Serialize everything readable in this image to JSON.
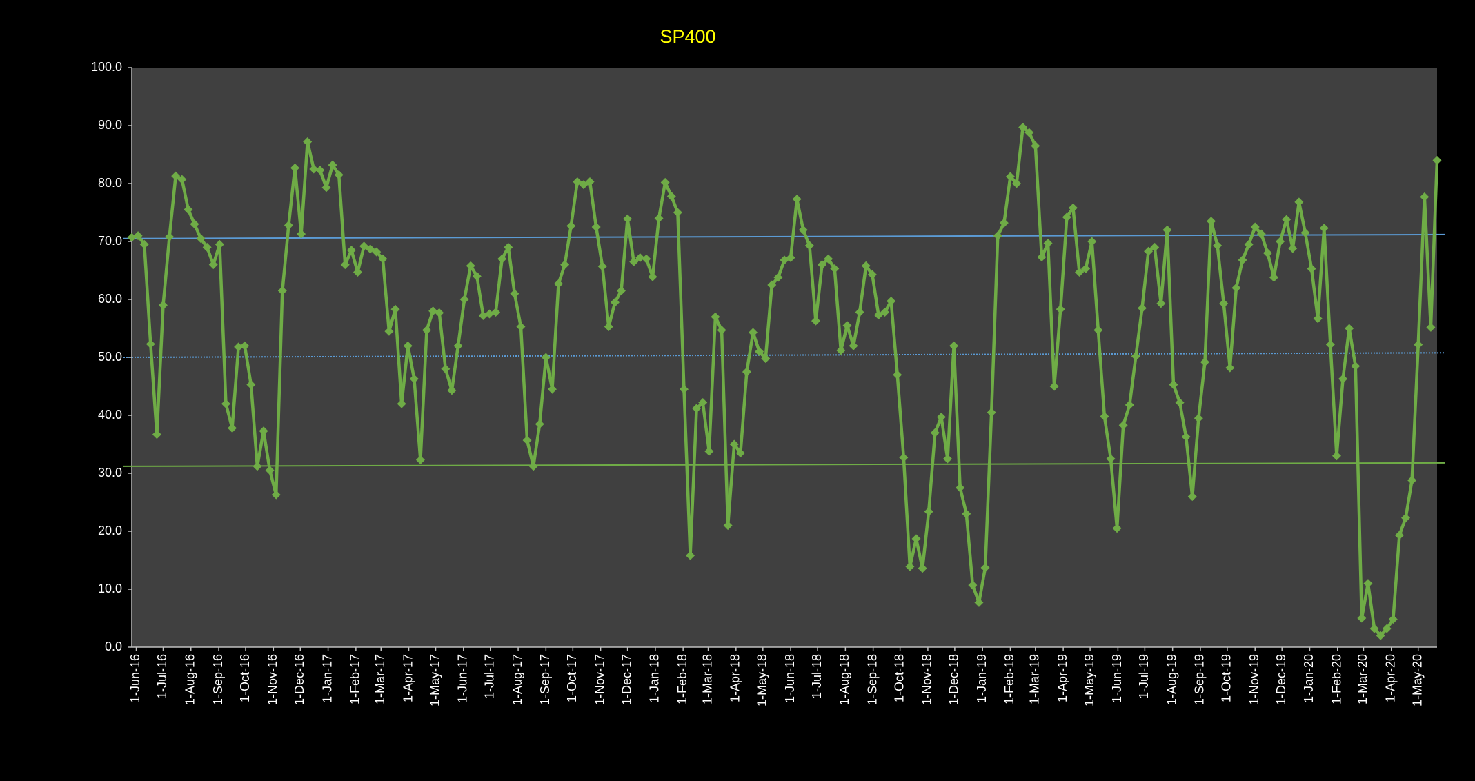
{
  "chart_data": {
    "type": "line",
    "title": "SP400",
    "title_color": "#ffff00",
    "background": "#000000",
    "plot_background": "#404040",
    "text_color": "#ffffff",
    "x": [
      "2016-05-27",
      "2016-06-03",
      "2016-06-10",
      "2016-06-17",
      "2016-06-24",
      "2016-07-01",
      "2016-07-08",
      "2016-07-15",
      "2016-07-22",
      "2016-07-29",
      "2016-08-05",
      "2016-08-12",
      "2016-08-19",
      "2016-08-26",
      "2016-09-02",
      "2016-09-09",
      "2016-09-16",
      "2016-09-23",
      "2016-09-30",
      "2016-10-07",
      "2016-10-14",
      "2016-10-21",
      "2016-10-28",
      "2016-11-04",
      "2016-11-11",
      "2016-11-18",
      "2016-11-25",
      "2016-12-02",
      "2016-12-09",
      "2016-12-16",
      "2016-12-23",
      "2016-12-30",
      "2017-01-06",
      "2017-01-13",
      "2017-01-20",
      "2017-01-27",
      "2017-02-03",
      "2017-02-10",
      "2017-02-17",
      "2017-02-24",
      "2017-03-03",
      "2017-03-10",
      "2017-03-17",
      "2017-03-24",
      "2017-03-31",
      "2017-04-07",
      "2017-04-14",
      "2017-04-21",
      "2017-04-28",
      "2017-05-05",
      "2017-05-12",
      "2017-05-19",
      "2017-05-26",
      "2017-06-02",
      "2017-06-09",
      "2017-06-16",
      "2017-06-23",
      "2017-06-30",
      "2017-07-07",
      "2017-07-14",
      "2017-07-21",
      "2017-07-28",
      "2017-08-04",
      "2017-08-11",
      "2017-08-18",
      "2017-08-25",
      "2017-09-01",
      "2017-09-08",
      "2017-09-15",
      "2017-09-22",
      "2017-09-29",
      "2017-10-06",
      "2017-10-13",
      "2017-10-20",
      "2017-10-27",
      "2017-11-03",
      "2017-11-10",
      "2017-11-17",
      "2017-11-24",
      "2017-12-01",
      "2017-12-08",
      "2017-12-15",
      "2017-12-22",
      "2017-12-29",
      "2018-01-05",
      "2018-01-12",
      "2018-01-19",
      "2018-01-26",
      "2018-02-02",
      "2018-02-09",
      "2018-02-16",
      "2018-02-23",
      "2018-03-02",
      "2018-03-09",
      "2018-03-16",
      "2018-03-23",
      "2018-03-30",
      "2018-04-06",
      "2018-04-13",
      "2018-04-20",
      "2018-04-27",
      "2018-05-04",
      "2018-05-11",
      "2018-05-18",
      "2018-05-25",
      "2018-06-01",
      "2018-06-08",
      "2018-06-15",
      "2018-06-22",
      "2018-06-29",
      "2018-07-06",
      "2018-07-13",
      "2018-07-20",
      "2018-07-27",
      "2018-08-03",
      "2018-08-10",
      "2018-08-17",
      "2018-08-24",
      "2018-08-31",
      "2018-09-07",
      "2018-09-14",
      "2018-09-21",
      "2018-09-28",
      "2018-10-05",
      "2018-10-12",
      "2018-10-19",
      "2018-10-26",
      "2018-11-02",
      "2018-11-09",
      "2018-11-16",
      "2018-11-23",
      "2018-11-30",
      "2018-12-07",
      "2018-12-14",
      "2018-12-21",
      "2018-12-28",
      "2019-01-04",
      "2019-01-11",
      "2019-01-18",
      "2019-01-25",
      "2019-02-01",
      "2019-02-08",
      "2019-02-15",
      "2019-02-22",
      "2019-03-01",
      "2019-03-08",
      "2019-03-15",
      "2019-03-22",
      "2019-03-29",
      "2019-04-05",
      "2019-04-12",
      "2019-04-19",
      "2019-04-26",
      "2019-05-03",
      "2019-05-10",
      "2019-05-17",
      "2019-05-24",
      "2019-05-31",
      "2019-06-07",
      "2019-06-14",
      "2019-06-21",
      "2019-06-28",
      "2019-07-05",
      "2019-07-12",
      "2019-07-19",
      "2019-07-26",
      "2019-08-02",
      "2019-08-09",
      "2019-08-16",
      "2019-08-23",
      "2019-08-30",
      "2019-09-06",
      "2019-09-13",
      "2019-09-20",
      "2019-09-27",
      "2019-10-04",
      "2019-10-11",
      "2019-10-18",
      "2019-10-25",
      "2019-11-01",
      "2019-11-08",
      "2019-11-15",
      "2019-11-22",
      "2019-11-29",
      "2019-12-06",
      "2019-12-13",
      "2019-12-20",
      "2019-12-27",
      "2020-01-03",
      "2020-01-10",
      "2020-01-17",
      "2020-01-24",
      "2020-01-31",
      "2020-02-07",
      "2020-02-14",
      "2020-02-21",
      "2020-02-28",
      "2020-03-06",
      "2020-03-13",
      "2020-03-20",
      "2020-03-27",
      "2020-04-03",
      "2020-04-10",
      "2020-04-17",
      "2020-04-24",
      "2020-05-01",
      "2020-05-08",
      "2020-05-15",
      "2020-05-22"
    ],
    "series": [
      {
        "color": "#6fac46",
        "values": [
          70.7,
          71,
          69.5,
          52.3,
          36.7,
          59,
          70.8,
          81.3,
          80.7,
          75.5,
          73,
          70.5,
          69,
          66,
          69.5,
          42,
          37.8,
          51.8,
          52,
          45.3,
          31.2,
          37.3,
          30.5,
          26.3,
          61.5,
          72.8,
          82.7,
          71.3,
          87.2,
          82.5,
          82.3,
          79.3,
          83.2,
          81.5,
          66,
          68.5,
          64.7,
          69.2,
          68.7,
          68.2,
          67,
          54.5,
          58.3,
          42,
          52,
          46.3,
          32.3,
          54.7,
          58,
          57.7,
          48,
          44.3,
          52,
          60,
          65.8,
          64,
          57.2,
          57.5,
          57.8,
          67,
          69,
          61,
          55.3,
          35.7,
          31.2,
          38.5,
          50,
          44.5,
          62.7,
          66,
          72.7,
          80.3,
          79.8,
          80.3,
          72.5,
          65.7,
          55.3,
          59.5,
          61.5,
          73.9,
          66.5,
          67.2,
          67,
          63.9,
          74,
          80.2,
          77.8,
          75,
          44.5,
          15.8,
          41.2,
          42.2,
          33.8,
          57,
          54.7,
          21,
          35,
          33.5,
          47.5,
          54.3,
          51,
          49.8,
          62.5,
          63.8,
          66.8,
          67.2,
          77.3,
          72,
          69.3,
          56.3,
          66,
          67,
          65.3,
          51.2,
          55.5,
          52,
          57.8,
          65.8,
          64.3,
          57.3,
          57.8,
          59.7,
          47,
          32.7,
          13.9,
          18.7,
          13.6,
          23.4,
          37,
          39.7,
          32.5,
          52,
          27.5,
          23,
          10.7,
          7.7,
          13.7,
          40.5,
          71,
          73.2,
          81.2,
          80,
          89.7,
          88.8,
          86.5,
          67.3,
          69.7,
          45,
          58.3,
          74.2,
          75.8,
          64.7,
          65.3,
          70,
          54.7,
          39.8,
          32.5,
          20.5,
          38.3,
          41.8,
          50.2,
          58.5,
          68.3,
          69,
          59.3,
          72,
          45.3,
          42.2,
          36.3,
          26,
          39.5,
          49.2,
          73.5,
          69.3,
          59.3,
          48.2,
          62,
          66.8,
          69.5,
          72.5,
          71.3,
          68,
          63.8,
          70,
          73.8,
          68.8,
          76.8,
          71.5,
          65.3,
          56.7,
          72.3,
          52.2,
          33,
          46.3,
          55,
          48.5,
          5,
          11,
          3.2,
          2,
          3.2,
          4.8,
          19.3,
          22.3,
          28.8,
          52.2,
          77.7,
          55.2,
          84
        ]
      }
    ],
    "reference_lines": [
      {
        "color": "#5b9bd5",
        "style": "solid",
        "values": [
          70.5,
          71.2
        ]
      },
      {
        "color": "#5b9bd5",
        "style": "dotted",
        "values": [
          50,
          50.8
        ]
      },
      {
        "color": "#6fac46",
        "style": "solid",
        "values": [
          31.2,
          31.8
        ]
      }
    ],
    "xlim": [
      "2016-05-27",
      "2020-05-22"
    ],
    "xticks": [
      {
        "value": "2016-06-01",
        "label": "1-Jun-16"
      },
      {
        "value": "2016-07-01",
        "label": "1-Jul-16"
      },
      {
        "value": "2016-08-01",
        "label": "1-Aug-16"
      },
      {
        "value": "2016-09-01",
        "label": "1-Sep-16"
      },
      {
        "value": "2016-10-01",
        "label": "1-Oct-16"
      },
      {
        "value": "2016-11-01",
        "label": "1-Nov-16"
      },
      {
        "value": "2016-12-01",
        "label": "1-Dec-16"
      },
      {
        "value": "2017-01-01",
        "label": "1-Jan-17"
      },
      {
        "value": "2017-02-01",
        "label": "1-Feb-17"
      },
      {
        "value": "2017-03-01",
        "label": "1-Mar-17"
      },
      {
        "value": "2017-04-01",
        "label": "1-Apr-17"
      },
      {
        "value": "2017-05-01",
        "label": "1-May-17"
      },
      {
        "value": "2017-06-01",
        "label": "1-Jun-17"
      },
      {
        "value": "2017-07-01",
        "label": "1-Jul-17"
      },
      {
        "value": "2017-08-01",
        "label": "1-Aug-17"
      },
      {
        "value": "2017-09-01",
        "label": "1-Sep-17"
      },
      {
        "value": "2017-10-01",
        "label": "1-Oct-17"
      },
      {
        "value": "2017-11-01",
        "label": "1-Nov-17"
      },
      {
        "value": "2017-12-01",
        "label": "1-Dec-17"
      },
      {
        "value": "2018-01-01",
        "label": "1-Jan-18"
      },
      {
        "value": "2018-02-01",
        "label": "1-Feb-18"
      },
      {
        "value": "2018-03-01",
        "label": "1-Mar-18"
      },
      {
        "value": "2018-04-01",
        "label": "1-Apr-18"
      },
      {
        "value": "2018-05-01",
        "label": "1-May-18"
      },
      {
        "value": "2018-06-01",
        "label": "1-Jun-18"
      },
      {
        "value": "2018-07-01",
        "label": "1-Jul-18"
      },
      {
        "value": "2018-08-01",
        "label": "1-Aug-18"
      },
      {
        "value": "2018-09-01",
        "label": "1-Sep-18"
      },
      {
        "value": "2018-10-01",
        "label": "1-Oct-18"
      },
      {
        "value": "2018-11-01",
        "label": "1-Nov-18"
      },
      {
        "value": "2018-12-01",
        "label": "1-Dec-18"
      },
      {
        "value": "2019-01-01",
        "label": "1-Jan-19"
      },
      {
        "value": "2019-02-01",
        "label": "1-Feb-19"
      },
      {
        "value": "2019-03-01",
        "label": "1-Mar-19"
      },
      {
        "value": "2019-04-01",
        "label": "1-Apr-19"
      },
      {
        "value": "2019-05-01",
        "label": "1-May-19"
      },
      {
        "value": "2019-06-01",
        "label": "1-Jun-19"
      },
      {
        "value": "2019-07-01",
        "label": "1-Jul-19"
      },
      {
        "value": "2019-08-01",
        "label": "1-Aug-19"
      },
      {
        "value": "2019-09-01",
        "label": "1-Sep-19"
      },
      {
        "value": "2019-10-01",
        "label": "1-Oct-19"
      },
      {
        "value": "2019-11-01",
        "label": "1-Nov-19"
      },
      {
        "value": "2019-12-01",
        "label": "1-Dec-19"
      },
      {
        "value": "2020-01-01",
        "label": "1-Jan-20"
      },
      {
        "value": "2020-02-01",
        "label": "1-Feb-20"
      },
      {
        "value": "2020-03-01",
        "label": "1-Mar-20"
      },
      {
        "value": "2020-04-01",
        "label": "1-Apr-20"
      },
      {
        "value": "2020-05-01",
        "label": "1-May-20"
      }
    ],
    "ylim": [
      0,
      100
    ],
    "yticks": [
      {
        "value": 0,
        "label": "0.0"
      },
      {
        "value": 10,
        "label": "10.0"
      },
      {
        "value": 20,
        "label": "20.0"
      },
      {
        "value": 30,
        "label": "30.0"
      },
      {
        "value": 40,
        "label": "40.0"
      },
      {
        "value": 50,
        "label": "50.0"
      },
      {
        "value": 60,
        "label": "60.0"
      },
      {
        "value": 70,
        "label": "70.0"
      },
      {
        "value": 80,
        "label": "80.0"
      },
      {
        "value": 90,
        "label": "90.0"
      },
      {
        "value": 100,
        "label": "100.0"
      }
    ],
    "grid": false
  }
}
